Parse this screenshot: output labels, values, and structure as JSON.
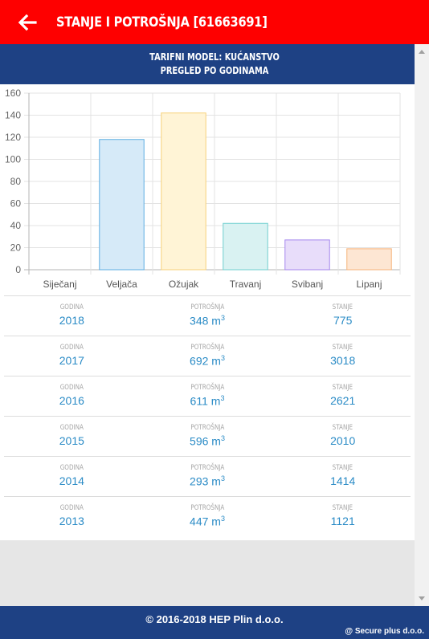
{
  "header": {
    "title": "Stanje i potrošnja [61663691]",
    "tariff_line": "TARIFNI MODEL: KUĆANSTVO",
    "overview_line": "PREGLED PO GODINAMA"
  },
  "chart_data": {
    "type": "bar",
    "categories": [
      "Siječanj",
      "Veljača",
      "Ožujak",
      "Travanj",
      "Svibanj",
      "Lipanj"
    ],
    "values": [
      0,
      118,
      142,
      42,
      27,
      19
    ],
    "ylim": [
      0,
      160
    ],
    "yticks": [
      0,
      20,
      40,
      60,
      80,
      100,
      120,
      140,
      160
    ],
    "grid": true,
    "colors": [
      {
        "fill": "#fbe3d6",
        "stroke": "#f4b183"
      },
      {
        "fill": "#d6eaf8",
        "stroke": "#5dade2"
      },
      {
        "fill": "#fff4d6",
        "stroke": "#f7d17a"
      },
      {
        "fill": "#d9f2f2",
        "stroke": "#6fcfcf"
      },
      {
        "fill": "#e8ddfa",
        "stroke": "#a586ee"
      },
      {
        "fill": "#fde6d3",
        "stroke": "#f6b27a"
      }
    ]
  },
  "table": {
    "labels": {
      "year": "GODINA",
      "consumption": "POTROŠNJA",
      "state": "STANJE"
    },
    "unit": "m",
    "unit_exp": "3",
    "rows": [
      {
        "year": "2018",
        "consumption": "348",
        "state": "775"
      },
      {
        "year": "2017",
        "consumption": "692",
        "state": "3018"
      },
      {
        "year": "2016",
        "consumption": "611",
        "state": "2621"
      },
      {
        "year": "2015",
        "consumption": "596",
        "state": "2010"
      },
      {
        "year": "2014",
        "consumption": "293",
        "state": "1414"
      },
      {
        "year": "2013",
        "consumption": "447",
        "state": "1121"
      }
    ]
  },
  "footer": {
    "copyright": "© 2016-2018 HEP Plin d.o.o.",
    "credit": "@ Secure plus d.o.o."
  },
  "icons": {
    "back": "arrow-left-icon"
  },
  "colors": {
    "header": "#fe0000",
    "navy": "#1e4184",
    "value_blue": "#2a8bc6"
  }
}
